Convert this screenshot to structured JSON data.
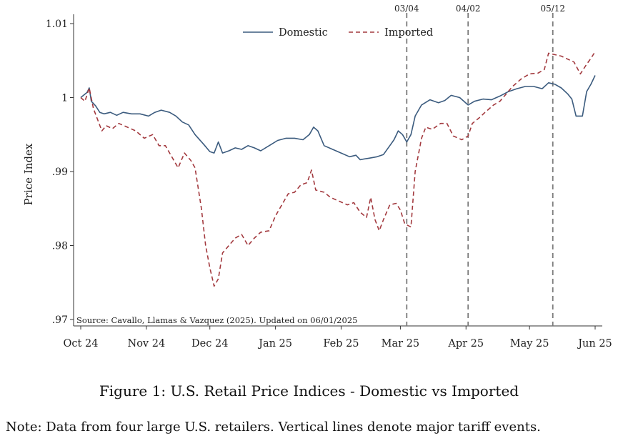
{
  "chart_data": {
    "type": "line",
    "title": "",
    "xlabel": "",
    "ylabel": "Price Index",
    "ylim": [
      0.97,
      1.01
    ],
    "ytick_values": [
      0.97,
      0.98,
      0.99,
      1.0,
      1.01
    ],
    "ytick_labels": [
      ".97",
      ".98",
      ".99",
      "1",
      "1.01"
    ],
    "xlim": [
      "2024-10-01",
      "2025-06-01"
    ],
    "xtick_labels": [
      "Oct 24",
      "Nov 24",
      "Dec 24",
      "Jan 25",
      "Feb 25",
      "Mar 25",
      "Apr 25",
      "May 25",
      "Jun 25"
    ],
    "xtick_dates": [
      "2024-10-01",
      "2024-11-01",
      "2024-12-01",
      "2025-01-01",
      "2025-02-01",
      "2025-03-01",
      "2025-04-01",
      "2025-05-01",
      "2025-06-01"
    ],
    "legend": {
      "position": "top-center",
      "entries": [
        "Domestic",
        "Imported"
      ]
    },
    "events": [
      {
        "label": "03/04",
        "date": "2025-03-04"
      },
      {
        "label": "04/02",
        "date": "2025-04-02"
      },
      {
        "label": "05/12",
        "date": "2025-05-12"
      }
    ],
    "source_note": "Source: Cavallo, Llamas & Vazquez (2025). Updated on 06/01/2025",
    "series": [
      {
        "name": "Domestic",
        "color": "#3b5b7e",
        "style": "solid",
        "points": [
          [
            "2024-10-01",
            1.0
          ],
          [
            "2024-10-04",
            1.0007
          ],
          [
            "2024-10-05",
            1.0013
          ],
          [
            "2024-10-06",
            0.9995
          ],
          [
            "2024-10-08",
            0.9989
          ],
          [
            "2024-10-10",
            0.998
          ],
          [
            "2024-10-12",
            0.9978
          ],
          [
            "2024-10-15",
            0.998
          ],
          [
            "2024-10-18",
            0.9976
          ],
          [
            "2024-10-21",
            0.998
          ],
          [
            "2024-10-25",
            0.9978
          ],
          [
            "2024-10-29",
            0.9978
          ],
          [
            "2024-11-02",
            0.9975
          ],
          [
            "2024-11-05",
            0.998
          ],
          [
            "2024-11-08",
            0.9983
          ],
          [
            "2024-11-12",
            0.998
          ],
          [
            "2024-11-15",
            0.9975
          ],
          [
            "2024-11-18",
            0.9967
          ],
          [
            "2024-11-21",
            0.9963
          ],
          [
            "2024-11-24",
            0.995
          ],
          [
            "2024-11-28",
            0.9937
          ],
          [
            "2024-12-01",
            0.9927
          ],
          [
            "2024-12-03",
            0.9925
          ],
          [
            "2024-12-05",
            0.994
          ],
          [
            "2024-12-07",
            0.9925
          ],
          [
            "2024-12-10",
            0.9928
          ],
          [
            "2024-12-13",
            0.9932
          ],
          [
            "2024-12-16",
            0.993
          ],
          [
            "2024-12-19",
            0.9935
          ],
          [
            "2024-12-22",
            0.9932
          ],
          [
            "2024-12-25",
            0.9928
          ],
          [
            "2024-12-29",
            0.9935
          ],
          [
            "2025-01-02",
            0.9942
          ],
          [
            "2025-01-06",
            0.9945
          ],
          [
            "2025-01-10",
            0.9945
          ],
          [
            "2025-01-14",
            0.9943
          ],
          [
            "2025-01-17",
            0.995
          ],
          [
            "2025-01-19",
            0.996
          ],
          [
            "2025-01-21",
            0.9955
          ],
          [
            "2025-01-24",
            0.9935
          ],
          [
            "2025-01-28",
            0.993
          ],
          [
            "2025-02-01",
            0.9925
          ],
          [
            "2025-02-05",
            0.992
          ],
          [
            "2025-02-08",
            0.9922
          ],
          [
            "2025-02-10",
            0.9916
          ],
          [
            "2025-02-14",
            0.9918
          ],
          [
            "2025-02-18",
            0.992
          ],
          [
            "2025-02-21",
            0.9923
          ],
          [
            "2025-02-24",
            0.9935
          ],
          [
            "2025-02-26",
            0.9943
          ],
          [
            "2025-02-28",
            0.9955
          ],
          [
            "2025-03-02",
            0.995
          ],
          [
            "2025-03-04",
            0.994
          ],
          [
            "2025-03-06",
            0.995
          ],
          [
            "2025-03-08",
            0.9975
          ],
          [
            "2025-03-11",
            0.999
          ],
          [
            "2025-03-15",
            0.9997
          ],
          [
            "2025-03-19",
            0.9993
          ],
          [
            "2025-03-22",
            0.9996
          ],
          [
            "2025-03-25",
            1.0003
          ],
          [
            "2025-03-29",
            1.0
          ],
          [
            "2025-04-02",
            0.999
          ],
          [
            "2025-04-05",
            0.9995
          ],
          [
            "2025-04-09",
            0.9998
          ],
          [
            "2025-04-13",
            0.9997
          ],
          [
            "2025-04-17",
            1.0002
          ],
          [
            "2025-04-21",
            1.0008
          ],
          [
            "2025-04-25",
            1.0012
          ],
          [
            "2025-04-29",
            1.0015
          ],
          [
            "2025-05-03",
            1.0015
          ],
          [
            "2025-05-07",
            1.0012
          ],
          [
            "2025-05-10",
            1.002
          ],
          [
            "2025-05-13",
            1.0018
          ],
          [
            "2025-05-16",
            1.0013
          ],
          [
            "2025-05-19",
            1.0005
          ],
          [
            "2025-05-21",
            0.9998
          ],
          [
            "2025-05-23",
            0.9975
          ],
          [
            "2025-05-26",
            0.9975
          ],
          [
            "2025-05-28",
            1.0008
          ],
          [
            "2025-05-30",
            1.0018
          ],
          [
            "2025-06-01",
            1.003
          ]
        ]
      },
      {
        "name": "Imported",
        "color": "#a33a3f",
        "style": "dashed",
        "points": [
          [
            "2024-10-01",
            1.0
          ],
          [
            "2024-10-03",
            0.9995
          ],
          [
            "2024-10-05",
            1.0013
          ],
          [
            "2024-10-07",
            0.9985
          ],
          [
            "2024-10-09",
            0.997
          ],
          [
            "2024-10-11",
            0.9955
          ],
          [
            "2024-10-13",
            0.9962
          ],
          [
            "2024-10-16",
            0.9958
          ],
          [
            "2024-10-19",
            0.9965
          ],
          [
            "2024-10-23",
            0.996
          ],
          [
            "2024-10-27",
            0.9955
          ],
          [
            "2024-10-31",
            0.9945
          ],
          [
            "2024-11-04",
            0.995
          ],
          [
            "2024-11-07",
            0.9935
          ],
          [
            "2024-11-10",
            0.9935
          ],
          [
            "2024-11-13",
            0.992
          ],
          [
            "2024-11-16",
            0.9905
          ],
          [
            "2024-11-19",
            0.9925
          ],
          [
            "2024-11-22",
            0.9915
          ],
          [
            "2024-11-24",
            0.9905
          ],
          [
            "2024-11-27",
            0.985
          ],
          [
            "2024-11-29",
            0.98
          ],
          [
            "2024-12-01",
            0.977
          ],
          [
            "2024-12-03",
            0.9745
          ],
          [
            "2024-12-05",
            0.9755
          ],
          [
            "2024-12-07",
            0.979
          ],
          [
            "2024-12-10",
            0.98
          ],
          [
            "2024-12-13",
            0.981
          ],
          [
            "2024-12-16",
            0.9815
          ],
          [
            "2024-12-19",
            0.98
          ],
          [
            "2024-12-22",
            0.981
          ],
          [
            "2024-12-25",
            0.9818
          ],
          [
            "2024-12-29",
            0.982
          ],
          [
            "2025-01-01",
            0.984
          ],
          [
            "2025-01-04",
            0.9855
          ],
          [
            "2025-01-07",
            0.987
          ],
          [
            "2025-01-10",
            0.9872
          ],
          [
            "2025-01-13",
            0.9882
          ],
          [
            "2025-01-16",
            0.9885
          ],
          [
            "2025-01-18",
            0.9902
          ],
          [
            "2025-01-20",
            0.9875
          ],
          [
            "2025-01-24",
            0.9872
          ],
          [
            "2025-01-27",
            0.9865
          ],
          [
            "2025-01-31",
            0.986
          ],
          [
            "2025-02-04",
            0.9855
          ],
          [
            "2025-02-07",
            0.9858
          ],
          [
            "2025-02-10",
            0.9845
          ],
          [
            "2025-02-13",
            0.9838
          ],
          [
            "2025-02-15",
            0.9865
          ],
          [
            "2025-02-17",
            0.9835
          ],
          [
            "2025-02-19",
            0.982
          ],
          [
            "2025-02-21",
            0.9835
          ],
          [
            "2025-02-24",
            0.9855
          ],
          [
            "2025-02-27",
            0.9857
          ],
          [
            "2025-03-01",
            0.9848
          ],
          [
            "2025-03-03",
            0.983
          ],
          [
            "2025-03-04",
            0.9828
          ],
          [
            "2025-03-06",
            0.9825
          ],
          [
            "2025-03-08",
            0.99
          ],
          [
            "2025-03-11",
            0.9945
          ],
          [
            "2025-03-13",
            0.996
          ],
          [
            "2025-03-16",
            0.9957
          ],
          [
            "2025-03-20",
            0.9965
          ],
          [
            "2025-03-23",
            0.9965
          ],
          [
            "2025-03-26",
            0.9948
          ],
          [
            "2025-03-30",
            0.9943
          ],
          [
            "2025-04-02",
            0.9948
          ],
          [
            "2025-04-04",
            0.9965
          ],
          [
            "2025-04-07",
            0.9972
          ],
          [
            "2025-04-10",
            0.998
          ],
          [
            "2025-04-14",
            0.999
          ],
          [
            "2025-04-17",
            0.9995
          ],
          [
            "2025-04-20",
            1.0005
          ],
          [
            "2025-04-23",
            1.0015
          ],
          [
            "2025-04-27",
            1.0025
          ],
          [
            "2025-05-01",
            1.0032
          ],
          [
            "2025-05-05",
            1.0033
          ],
          [
            "2025-05-08",
            1.0038
          ],
          [
            "2025-05-10",
            1.006
          ],
          [
            "2025-05-13",
            1.0058
          ],
          [
            "2025-05-16",
            1.0056
          ],
          [
            "2025-05-19",
            1.0052
          ],
          [
            "2025-05-22",
            1.0048
          ],
          [
            "2025-05-25",
            1.0032
          ],
          [
            "2025-05-28",
            1.0045
          ],
          [
            "2025-05-30",
            1.0053
          ],
          [
            "2025-06-01",
            1.0062
          ]
        ]
      }
    ]
  },
  "caption": {
    "figure_title": "Figure 1: U.S. Retail Price Indices - Domestic vs Imported",
    "note": "Note: Data from four large U.S. retailers. Vertical lines denote major tariff events."
  }
}
